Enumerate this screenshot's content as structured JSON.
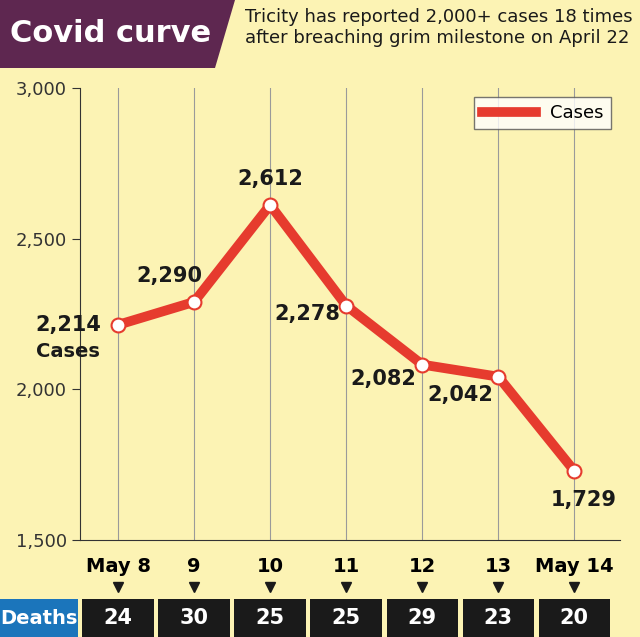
{
  "chart_data": {
    "type": "line",
    "title": "Covid curve",
    "subtitle": "Tricity has reported 2,000+ cases 18 times after breaching grim milestone on April 22",
    "categories": [
      "May 8",
      "9",
      "10",
      "11",
      "12",
      "13",
      "May 14"
    ],
    "series": [
      {
        "name": "Cases",
        "color": "#e63b2e",
        "marker": "o",
        "line_style": "solid",
        "values": [
          2214,
          2290,
          2612,
          2278,
          2082,
          2042,
          1729
        ],
        "value_labels": [
          "2,214",
          "2,290",
          "2,612",
          "2,278",
          "2,082",
          "2,042",
          "1,729"
        ]
      }
    ],
    "annotation": "Cases",
    "deaths": {
      "label": "Deaths",
      "values": [
        24,
        30,
        25,
        25,
        29,
        23,
        20
      ]
    },
    "ylim": [
      1500,
      3000
    ],
    "yticks": [
      {
        "value": 1500,
        "label": "1,500"
      },
      {
        "value": 2000,
        "label": "2,000"
      },
      {
        "value": 2500,
        "label": "2,500"
      },
      {
        "value": 3000,
        "label": "3,000"
      }
    ],
    "grid": "x",
    "legend": "upper right",
    "data_labels": true
  }
}
